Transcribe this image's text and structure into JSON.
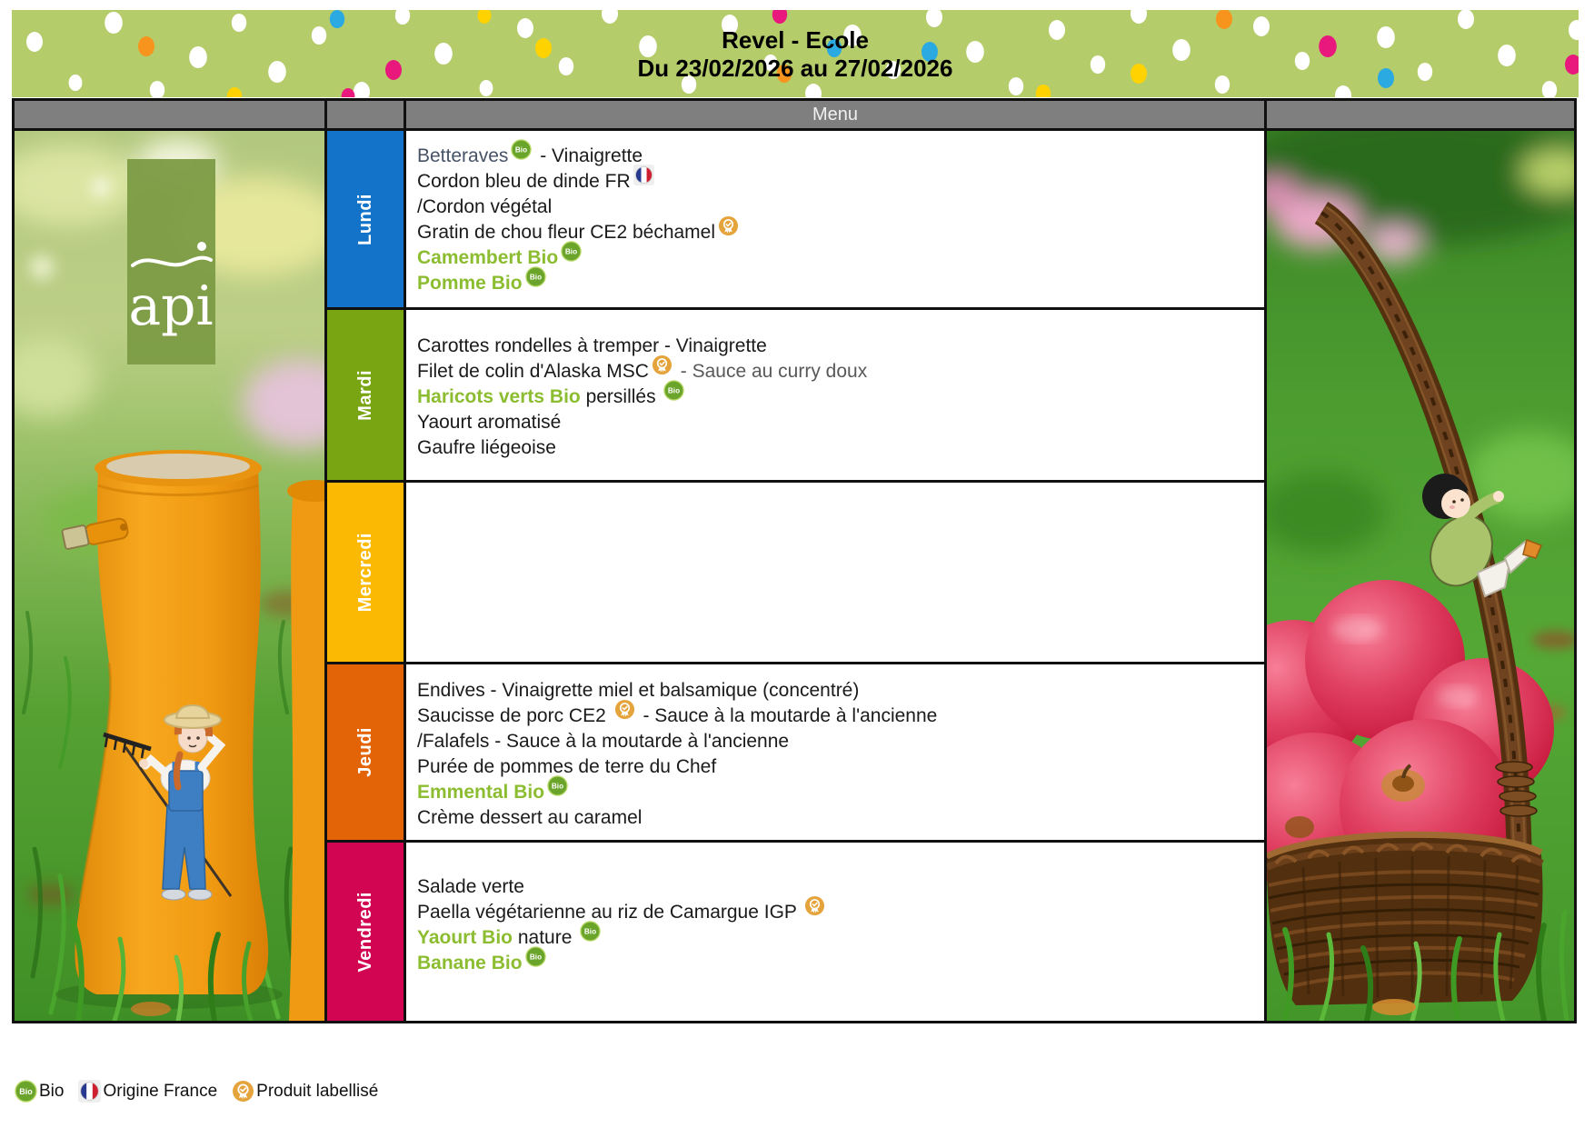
{
  "header": {
    "title": "Revel - Ecole",
    "subtitle": "Du 23/02/2026 au 27/02/2026",
    "menu_label": "Menu",
    "band_color": "#B5CC6B",
    "dot_colors": {
      "w": "#FFFFFF",
      "o": "#F7941D",
      "m": "#E8187C",
      "y": "#FFD200",
      "b": "#2BA9E1"
    }
  },
  "colors": {
    "bio_text": "#8CBD31",
    "bio_badge": "#6BA42B",
    "medal": "#E5A33B",
    "flag_blue": "#273A8F",
    "flag_red": "#CE2030",
    "entree_dark": "#475266",
    "gray_text": "#595959",
    "menu_bar": "#7F7F7F"
  },
  "bio_badge_text": "Bio",
  "logo": {
    "text": "api"
  },
  "days": [
    {
      "label": "Lundi",
      "color": "#1273C8",
      "lines": [
        [
          {
            "t": "Betteraves",
            "s": "d"
          },
          {
            "i": "bio"
          },
          {
            "t": " - Vinaigrette"
          }
        ],
        [
          {
            "t": "Cordon bleu de dinde FR"
          },
          {
            "i": "flag"
          }
        ],
        [
          {
            "t": "/Cordon végétal"
          }
        ],
        [
          {
            "t": "Gratin de chou fleur CE2 béchamel"
          },
          {
            "i": "medal"
          }
        ],
        [
          {
            "t": "Camembert Bio",
            "s": "g"
          },
          {
            "i": "bio"
          }
        ],
        [
          {
            "t": "Pomme Bio",
            "s": "g"
          },
          {
            "i": "bio"
          }
        ]
      ]
    },
    {
      "label": "Mardi",
      "color": "#78A511",
      "lines": [
        [
          {
            "t": "Carottes rondelles à tremper - Vinaigrette"
          }
        ],
        [
          {
            "t": "Filet de colin d'Alaska MSC"
          },
          {
            "i": "medal"
          },
          {
            "t": " - Sauce au curry doux",
            "s": "gr"
          }
        ],
        [
          {
            "t": "Haricots verts Bio",
            "s": "g"
          },
          {
            "t": " persillés "
          },
          {
            "i": "bio"
          }
        ],
        [
          {
            "t": "Yaourt aromatisé"
          }
        ],
        [
          {
            "t": "Gaufre liégeoise"
          }
        ]
      ]
    },
    {
      "label": "Mercredi",
      "color": "#FBB904",
      "lines": []
    },
    {
      "label": "Jeudi",
      "color": "#E36407",
      "lines": [
        [
          {
            "t": "Endives - Vinaigrette miel et balsamique (concentré)"
          }
        ],
        [
          {
            "t": "Saucisse de porc CE2 "
          },
          {
            "i": "medal"
          },
          {
            "t": " - Sauce à la moutarde à l'ancienne"
          }
        ],
        [
          {
            "t": "/Falafels - Sauce à la moutarde à l'ancienne"
          }
        ],
        [
          {
            "t": "Purée de pommes de terre du Chef"
          }
        ],
        [
          {
            "t": "Emmental Bio",
            "s": "g"
          },
          {
            "i": "bio"
          }
        ],
        [
          {
            "t": "Crème dessert au caramel"
          }
        ]
      ]
    },
    {
      "label": "Vendredi",
      "color": "#D10551",
      "lines": [
        [
          {
            "t": "Salade verte"
          }
        ],
        [
          {
            "t": "Paella végétarienne au riz de Camargue IGP "
          },
          {
            "i": "medal"
          }
        ],
        [
          {
            "t": "Yaourt Bio",
            "s": "g"
          },
          {
            "t": " nature "
          },
          {
            "i": "bio"
          }
        ],
        [
          {
            "t": "Banane Bio",
            "s": "g"
          },
          {
            "i": "bio"
          }
        ]
      ]
    }
  ],
  "legend": {
    "bio": "Bio",
    "origine": "Origine France",
    "labellise": "Produit labellisé"
  }
}
